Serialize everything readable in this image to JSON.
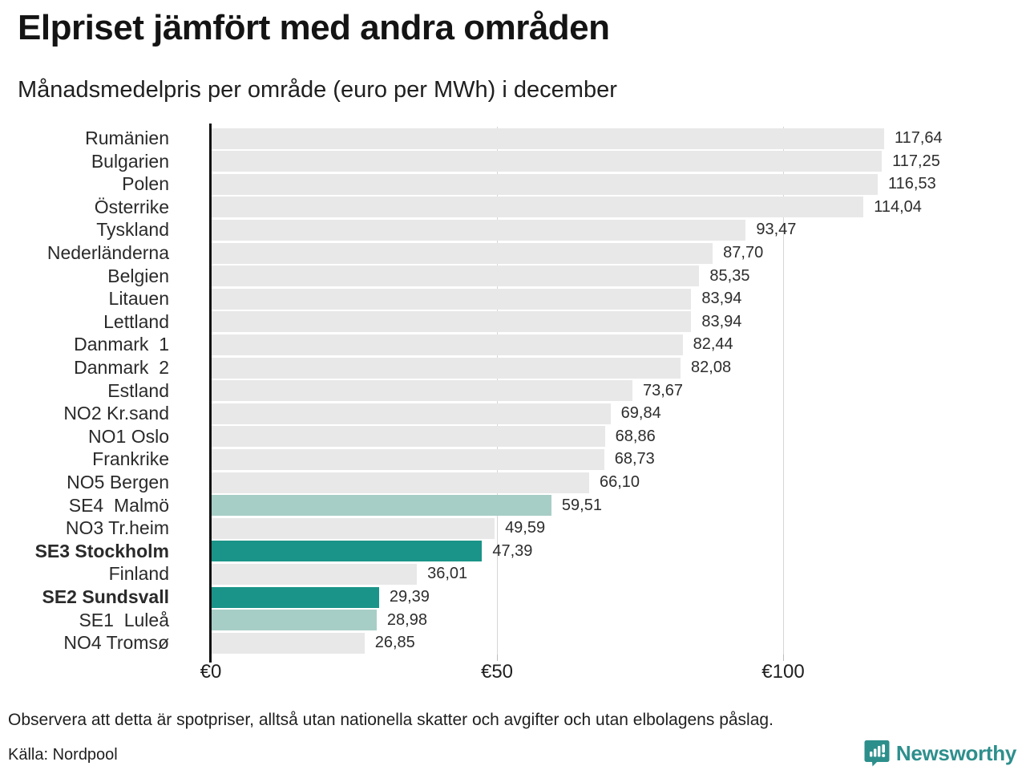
{
  "title": "Elpriset jämfört med andra områden",
  "subtitle": "Månadsmedelpris per område (euro per MWh) i december",
  "chart_data": {
    "type": "bar",
    "orientation": "horizontal",
    "unit": "euro per MWh",
    "xlim": [
      0,
      128
    ],
    "grid": "vertical",
    "x_ticks": [
      {
        "value": 0,
        "label": "€0"
      },
      {
        "value": 50,
        "label": "€50"
      },
      {
        "value": 100,
        "label": "€100"
      }
    ],
    "rows": [
      {
        "label": "Rumänien",
        "value": 117.64,
        "display": "117,64",
        "color": "default",
        "bold": false
      },
      {
        "label": "Bulgarien",
        "value": 117.25,
        "display": "117,25",
        "color": "default",
        "bold": false
      },
      {
        "label": "Polen",
        "value": 116.53,
        "display": "116,53",
        "color": "default",
        "bold": false
      },
      {
        "label": "Österrike",
        "value": 114.04,
        "display": "114,04",
        "color": "default",
        "bold": false
      },
      {
        "label": "Tyskland",
        "value": 93.47,
        "display": "93,47",
        "color": "default",
        "bold": false
      },
      {
        "label": "Nederländerna",
        "value": 87.7,
        "display": "87,70",
        "color": "default",
        "bold": false
      },
      {
        "label": "Belgien",
        "value": 85.35,
        "display": "85,35",
        "color": "default",
        "bold": false
      },
      {
        "label": "Litauen",
        "value": 83.94,
        "display": "83,94",
        "color": "default",
        "bold": false
      },
      {
        "label": "Lettland",
        "value": 83.94,
        "display": "83,94",
        "color": "default",
        "bold": false
      },
      {
        "label": "Danmark  1",
        "value": 82.44,
        "display": "82,44",
        "color": "default",
        "bold": false
      },
      {
        "label": "Danmark  2",
        "value": 82.08,
        "display": "82,08",
        "color": "default",
        "bold": false
      },
      {
        "label": "Estland",
        "value": 73.67,
        "display": "73,67",
        "color": "default",
        "bold": false
      },
      {
        "label": "NO2 Kr.sand",
        "value": 69.84,
        "display": "69,84",
        "color": "default",
        "bold": false
      },
      {
        "label": "NO1 Oslo",
        "value": 68.86,
        "display": "68,86",
        "color": "default",
        "bold": false
      },
      {
        "label": "Frankrike",
        "value": 68.73,
        "display": "68,73",
        "color": "default",
        "bold": false
      },
      {
        "label": "NO5 Bergen",
        "value": 66.1,
        "display": "66,10",
        "color": "default",
        "bold": false
      },
      {
        "label": "SE4  Malmö",
        "value": 59.51,
        "display": "59,51",
        "color": "light",
        "bold": false
      },
      {
        "label": "NO3 Tr.heim",
        "value": 49.59,
        "display": "49,59",
        "color": "default",
        "bold": false
      },
      {
        "label": "SE3 Stockholm",
        "value": 47.39,
        "display": "47,39",
        "color": "dark",
        "bold": true
      },
      {
        "label": "Finland",
        "value": 36.01,
        "display": "36,01",
        "color": "default",
        "bold": false
      },
      {
        "label": "SE2 Sundsvall",
        "value": 29.39,
        "display": "29,39",
        "color": "dark",
        "bold": true
      },
      {
        "label": "SE1  Luleå",
        "value": 28.98,
        "display": "28,98",
        "color": "light",
        "bold": false
      },
      {
        "label": "NO4 Tromsø",
        "value": 26.85,
        "display": "26,85",
        "color": "default",
        "bold": false
      }
    ],
    "title": "Elpriset jämfört med andra områden",
    "xlabel": "euro per MWh",
    "ylabel": ""
  },
  "colors": {
    "bar_default": "#e8e8e8",
    "bar_light_teal": "#a7cec6",
    "bar_dark_teal": "#1a9488",
    "axis": "#111111",
    "gridline": "#d6d6d6",
    "brand_teal": "#2d8f8c"
  },
  "footer": {
    "note": "Observera att detta är spotpriser, alltså utan nationella skatter och avgifter och utan elbolagens påslag.",
    "source": "Källa: Nordpool",
    "brand": "Newsworthy",
    "brand_icon": "bar-chart-speech-bubble-icon"
  }
}
